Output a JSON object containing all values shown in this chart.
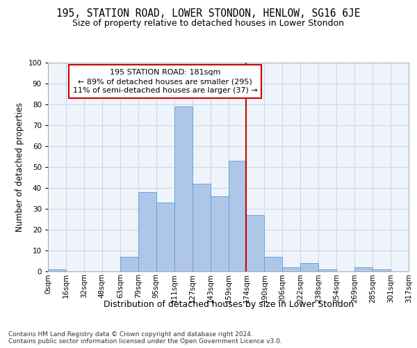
{
  "title1": "195, STATION ROAD, LOWER STONDON, HENLOW, SG16 6JE",
  "title2": "Size of property relative to detached houses in Lower Stondon",
  "xlabel": "Distribution of detached houses by size in Lower Stondon",
  "ylabel": "Number of detached properties",
  "footnote": "Contains HM Land Registry data © Crown copyright and database right 2024.\nContains public sector information licensed under the Open Government Licence v3.0.",
  "bin_labels": [
    "0sqm",
    "16sqm",
    "32sqm",
    "48sqm",
    "63sqm",
    "79sqm",
    "95sqm",
    "111sqm",
    "127sqm",
    "143sqm",
    "159sqm",
    "174sqm",
    "190sqm",
    "206sqm",
    "222sqm",
    "238sqm",
    "254sqm",
    "269sqm",
    "285sqm",
    "301sqm",
    "317sqm"
  ],
  "bar_values": [
    1,
    0,
    0,
    0,
    7,
    38,
    33,
    79,
    42,
    36,
    53,
    27,
    7,
    2,
    4,
    1,
    0,
    2,
    1,
    0
  ],
  "bar_color": "#aec6e8",
  "bar_edge_color": "#5a9fd4",
  "grid_color": "#c8d8e8",
  "background_color": "#eef4fa",
  "vline_color": "#cc0000",
  "annotation_text": "195 STATION ROAD: 181sqm\n← 89% of detached houses are smaller (295)\n11% of semi-detached houses are larger (37) →",
  "annotation_box_color": "#cc0000",
  "ylim": [
    0,
    100
  ],
  "yticks": [
    0,
    10,
    20,
    30,
    40,
    50,
    60,
    70,
    80,
    90,
    100
  ],
  "title1_fontsize": 10.5,
  "title2_fontsize": 9,
  "xlabel_fontsize": 9,
  "ylabel_fontsize": 8.5,
  "tick_fontsize": 7.5,
  "annotation_fontsize": 8,
  "footnote_fontsize": 6.5
}
